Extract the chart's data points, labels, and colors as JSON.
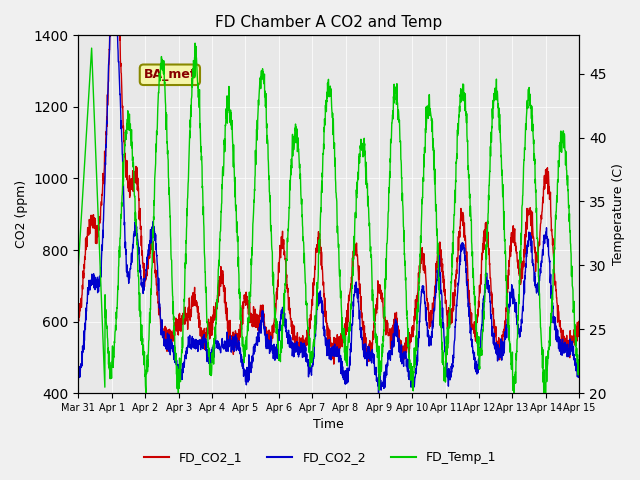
{
  "title": "FD Chamber A CO2 and Temp",
  "xlabel": "Time",
  "ylabel_left": "CO2 (ppm)",
  "ylabel_right": "Temperature (C)",
  "ylim_left": [
    400,
    1400
  ],
  "ylim_right": [
    20,
    48
  ],
  "annotation_text": "BA_met",
  "background_color": "#f0f0f0",
  "plot_bg_color": "#e8e8e8",
  "color_co2_1": "#cc0000",
  "color_co2_2": "#0000cc",
  "color_temp": "#00cc00",
  "line_width": 1.0,
  "legend_labels": [
    "FD_CO2_1",
    "FD_CO2_2",
    "FD_Temp_1"
  ],
  "x_tick_labels": [
    "Mar 31",
    "Apr 1",
    "Apr 2",
    "Apr 3",
    "Apr 4",
    "Apr 5",
    "Apr 6",
    "Apr 7",
    "Apr 8",
    "Apr 9",
    "Apr 10",
    "Apr 11",
    "Apr 12",
    "Apr 13",
    "Apr 14",
    "Apr 15"
  ],
  "n_days": 15
}
